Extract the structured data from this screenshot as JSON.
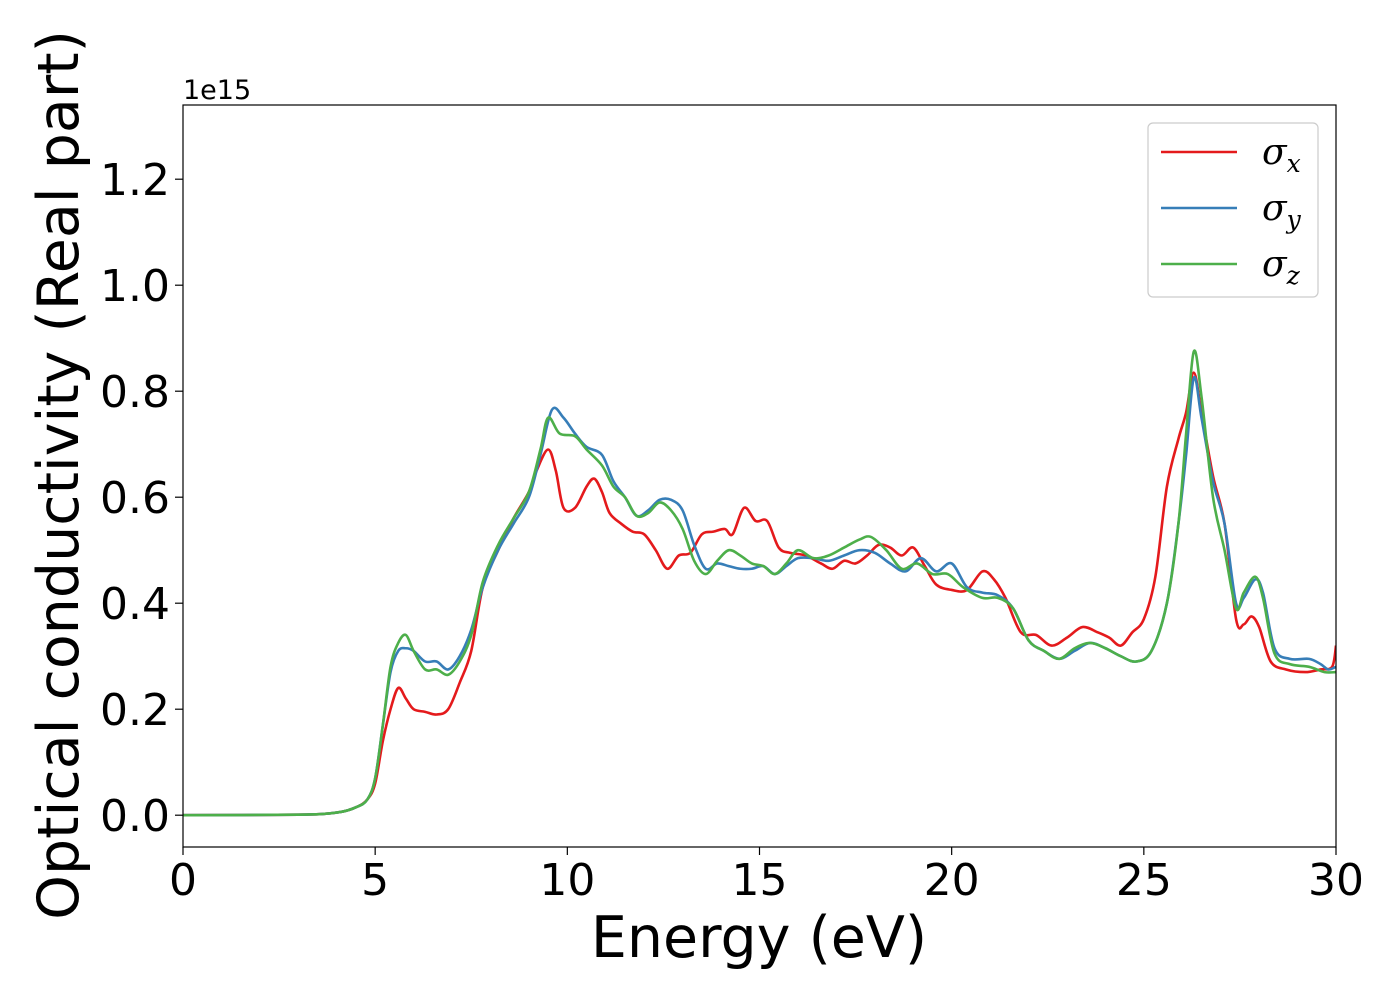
{
  "chart_data": {
    "type": "line",
    "xlabel": "Energy (eV)",
    "ylabel": "Optical conductivity (Real part)",
    "y_offset_text": "1e15",
    "xlim": [
      0,
      30
    ],
    "ylim": [
      -0.06,
      1.34
    ],
    "x_ticks": [
      0,
      5,
      10,
      15,
      20,
      25,
      30
    ],
    "x_tick_labels": [
      "0",
      "5",
      "10",
      "15",
      "20",
      "25",
      "30"
    ],
    "y_ticks": [
      0.0,
      0.2,
      0.4,
      0.6,
      0.8,
      1.0,
      1.2
    ],
    "y_tick_labels": [
      "0.0",
      "0.2",
      "0.4",
      "0.6",
      "0.8",
      "1.0",
      "1.2"
    ],
    "grid": false,
    "legend_position": "top-right",
    "series": [
      {
        "name": "σx",
        "symbol": "σ",
        "subscript": "x",
        "color": "#e41a1c",
        "points": [
          [
            0,
            0
          ],
          [
            3,
            0.001
          ],
          [
            4,
            0.005
          ],
          [
            4.5,
            0.015
          ],
          [
            4.8,
            0.03
          ],
          [
            5.0,
            0.06
          ],
          [
            5.2,
            0.14
          ],
          [
            5.4,
            0.2
          ],
          [
            5.6,
            0.24
          ],
          [
            5.8,
            0.22
          ],
          [
            6.0,
            0.2
          ],
          [
            6.3,
            0.195
          ],
          [
            6.6,
            0.19
          ],
          [
            6.9,
            0.2
          ],
          [
            7.2,
            0.25
          ],
          [
            7.5,
            0.31
          ],
          [
            7.8,
            0.43
          ],
          [
            8.2,
            0.5
          ],
          [
            8.6,
            0.56
          ],
          [
            9.0,
            0.61
          ],
          [
            9.2,
            0.65
          ],
          [
            9.5,
            0.69
          ],
          [
            9.7,
            0.65
          ],
          [
            9.9,
            0.58
          ],
          [
            10.2,
            0.58
          ],
          [
            10.5,
            0.62
          ],
          [
            10.7,
            0.635
          ],
          [
            10.9,
            0.61
          ],
          [
            11.1,
            0.57
          ],
          [
            11.4,
            0.55
          ],
          [
            11.7,
            0.535
          ],
          [
            12.0,
            0.53
          ],
          [
            12.3,
            0.5
          ],
          [
            12.6,
            0.465
          ],
          [
            12.9,
            0.49
          ],
          [
            13.2,
            0.495
          ],
          [
            13.5,
            0.53
          ],
          [
            13.8,
            0.535
          ],
          [
            14.1,
            0.54
          ],
          [
            14.3,
            0.53
          ],
          [
            14.6,
            0.58
          ],
          [
            14.9,
            0.555
          ],
          [
            15.2,
            0.555
          ],
          [
            15.5,
            0.505
          ],
          [
            15.8,
            0.495
          ],
          [
            16.2,
            0.49
          ],
          [
            16.6,
            0.475
          ],
          [
            16.9,
            0.465
          ],
          [
            17.2,
            0.48
          ],
          [
            17.5,
            0.475
          ],
          [
            17.8,
            0.49
          ],
          [
            18.1,
            0.51
          ],
          [
            18.4,
            0.505
          ],
          [
            18.7,
            0.49
          ],
          [
            19.0,
            0.505
          ],
          [
            19.3,
            0.47
          ],
          [
            19.6,
            0.435
          ],
          [
            20.0,
            0.425
          ],
          [
            20.4,
            0.425
          ],
          [
            20.8,
            0.46
          ],
          [
            21.1,
            0.445
          ],
          [
            21.4,
            0.41
          ],
          [
            21.8,
            0.345
          ],
          [
            22.2,
            0.34
          ],
          [
            22.6,
            0.32
          ],
          [
            23.0,
            0.335
          ],
          [
            23.4,
            0.355
          ],
          [
            23.8,
            0.345
          ],
          [
            24.1,
            0.335
          ],
          [
            24.4,
            0.32
          ],
          [
            24.7,
            0.345
          ],
          [
            25.0,
            0.37
          ],
          [
            25.3,
            0.45
          ],
          [
            25.6,
            0.62
          ],
          [
            25.9,
            0.71
          ],
          [
            26.1,
            0.76
          ],
          [
            26.3,
            0.835
          ],
          [
            26.5,
            0.76
          ],
          [
            26.8,
            0.64
          ],
          [
            27.1,
            0.55
          ],
          [
            27.4,
            0.37
          ],
          [
            27.6,
            0.36
          ],
          [
            27.8,
            0.375
          ],
          [
            28.0,
            0.355
          ],
          [
            28.3,
            0.29
          ],
          [
            28.7,
            0.275
          ],
          [
            29.2,
            0.27
          ],
          [
            29.6,
            0.275
          ],
          [
            29.9,
            0.28
          ],
          [
            30.0,
            0.32
          ]
        ]
      },
      {
        "name": "σy",
        "symbol": "σ",
        "subscript": "y",
        "color": "#377eb8",
        "points": [
          [
            0,
            0
          ],
          [
            3,
            0.001
          ],
          [
            4,
            0.005
          ],
          [
            4.5,
            0.015
          ],
          [
            4.8,
            0.03
          ],
          [
            5.0,
            0.07
          ],
          [
            5.2,
            0.17
          ],
          [
            5.4,
            0.27
          ],
          [
            5.6,
            0.31
          ],
          [
            5.8,
            0.315
          ],
          [
            6.0,
            0.31
          ],
          [
            6.3,
            0.29
          ],
          [
            6.6,
            0.29
          ],
          [
            6.9,
            0.275
          ],
          [
            7.2,
            0.3
          ],
          [
            7.5,
            0.35
          ],
          [
            7.8,
            0.43
          ],
          [
            8.2,
            0.5
          ],
          [
            8.6,
            0.55
          ],
          [
            9.0,
            0.6
          ],
          [
            9.3,
            0.68
          ],
          [
            9.6,
            0.765
          ],
          [
            9.9,
            0.75
          ],
          [
            10.2,
            0.72
          ],
          [
            10.5,
            0.695
          ],
          [
            10.9,
            0.68
          ],
          [
            11.2,
            0.63
          ],
          [
            11.5,
            0.6
          ],
          [
            11.8,
            0.565
          ],
          [
            12.1,
            0.575
          ],
          [
            12.4,
            0.595
          ],
          [
            12.7,
            0.595
          ],
          [
            13.0,
            0.575
          ],
          [
            13.3,
            0.51
          ],
          [
            13.6,
            0.465
          ],
          [
            13.9,
            0.475
          ],
          [
            14.2,
            0.47
          ],
          [
            14.5,
            0.465
          ],
          [
            14.8,
            0.465
          ],
          [
            15.1,
            0.47
          ],
          [
            15.4,
            0.455
          ],
          [
            15.7,
            0.47
          ],
          [
            16.0,
            0.485
          ],
          [
            16.4,
            0.485
          ],
          [
            16.8,
            0.48
          ],
          [
            17.2,
            0.49
          ],
          [
            17.6,
            0.5
          ],
          [
            18.0,
            0.495
          ],
          [
            18.4,
            0.475
          ],
          [
            18.8,
            0.46
          ],
          [
            19.2,
            0.485
          ],
          [
            19.6,
            0.46
          ],
          [
            20.0,
            0.475
          ],
          [
            20.4,
            0.43
          ],
          [
            20.8,
            0.42
          ],
          [
            21.2,
            0.415
          ],
          [
            21.6,
            0.39
          ],
          [
            22.0,
            0.33
          ],
          [
            22.4,
            0.31
          ],
          [
            22.8,
            0.295
          ],
          [
            23.2,
            0.31
          ],
          [
            23.6,
            0.325
          ],
          [
            24.0,
            0.315
          ],
          [
            24.4,
            0.3
          ],
          [
            24.8,
            0.29
          ],
          [
            25.2,
            0.31
          ],
          [
            25.6,
            0.4
          ],
          [
            25.9,
            0.55
          ],
          [
            26.1,
            0.68
          ],
          [
            26.3,
            0.825
          ],
          [
            26.5,
            0.75
          ],
          [
            26.8,
            0.63
          ],
          [
            27.1,
            0.55
          ],
          [
            27.4,
            0.4
          ],
          [
            27.6,
            0.41
          ],
          [
            27.9,
            0.445
          ],
          [
            28.1,
            0.42
          ],
          [
            28.4,
            0.315
          ],
          [
            28.8,
            0.295
          ],
          [
            29.3,
            0.295
          ],
          [
            29.6,
            0.285
          ],
          [
            29.8,
            0.275
          ],
          [
            30.0,
            0.28
          ]
        ]
      },
      {
        "name": "σz",
        "symbol": "σ",
        "subscript": "z",
        "color": "#4daf4a",
        "points": [
          [
            0,
            0
          ],
          [
            3,
            0.001
          ],
          [
            4,
            0.005
          ],
          [
            4.5,
            0.015
          ],
          [
            4.8,
            0.03
          ],
          [
            5.0,
            0.07
          ],
          [
            5.2,
            0.17
          ],
          [
            5.4,
            0.28
          ],
          [
            5.6,
            0.325
          ],
          [
            5.8,
            0.34
          ],
          [
            6.0,
            0.31
          ],
          [
            6.3,
            0.275
          ],
          [
            6.6,
            0.275
          ],
          [
            6.9,
            0.265
          ],
          [
            7.2,
            0.29
          ],
          [
            7.5,
            0.34
          ],
          [
            7.8,
            0.44
          ],
          [
            8.2,
            0.51
          ],
          [
            8.6,
            0.56
          ],
          [
            9.0,
            0.61
          ],
          [
            9.3,
            0.69
          ],
          [
            9.5,
            0.75
          ],
          [
            9.8,
            0.72
          ],
          [
            10.2,
            0.715
          ],
          [
            10.5,
            0.69
          ],
          [
            10.9,
            0.66
          ],
          [
            11.2,
            0.62
          ],
          [
            11.5,
            0.6
          ],
          [
            11.8,
            0.565
          ],
          [
            12.1,
            0.57
          ],
          [
            12.4,
            0.59
          ],
          [
            12.7,
            0.575
          ],
          [
            13.0,
            0.54
          ],
          [
            13.3,
            0.48
          ],
          [
            13.6,
            0.455
          ],
          [
            13.9,
            0.48
          ],
          [
            14.2,
            0.5
          ],
          [
            14.5,
            0.49
          ],
          [
            14.8,
            0.475
          ],
          [
            15.1,
            0.47
          ],
          [
            15.4,
            0.455
          ],
          [
            15.7,
            0.475
          ],
          [
            16.0,
            0.5
          ],
          [
            16.4,
            0.485
          ],
          [
            16.8,
            0.49
          ],
          [
            17.2,
            0.505
          ],
          [
            17.6,
            0.52
          ],
          [
            17.9,
            0.525
          ],
          [
            18.3,
            0.5
          ],
          [
            18.7,
            0.465
          ],
          [
            19.1,
            0.475
          ],
          [
            19.5,
            0.455
          ],
          [
            19.9,
            0.455
          ],
          [
            20.3,
            0.43
          ],
          [
            20.8,
            0.41
          ],
          [
            21.2,
            0.41
          ],
          [
            21.6,
            0.39
          ],
          [
            22.0,
            0.33
          ],
          [
            22.4,
            0.31
          ],
          [
            22.8,
            0.295
          ],
          [
            23.2,
            0.315
          ],
          [
            23.6,
            0.325
          ],
          [
            24.0,
            0.315
          ],
          [
            24.4,
            0.3
          ],
          [
            24.8,
            0.29
          ],
          [
            25.2,
            0.31
          ],
          [
            25.6,
            0.4
          ],
          [
            25.9,
            0.55
          ],
          [
            26.1,
            0.72
          ],
          [
            26.3,
            0.875
          ],
          [
            26.5,
            0.79
          ],
          [
            26.8,
            0.6
          ],
          [
            27.1,
            0.5
          ],
          [
            27.4,
            0.39
          ],
          [
            27.6,
            0.42
          ],
          [
            27.9,
            0.45
          ],
          [
            28.1,
            0.41
          ],
          [
            28.4,
            0.305
          ],
          [
            28.8,
            0.285
          ],
          [
            29.3,
            0.28
          ],
          [
            29.7,
            0.27
          ],
          [
            30.0,
            0.27
          ]
        ]
      }
    ]
  }
}
